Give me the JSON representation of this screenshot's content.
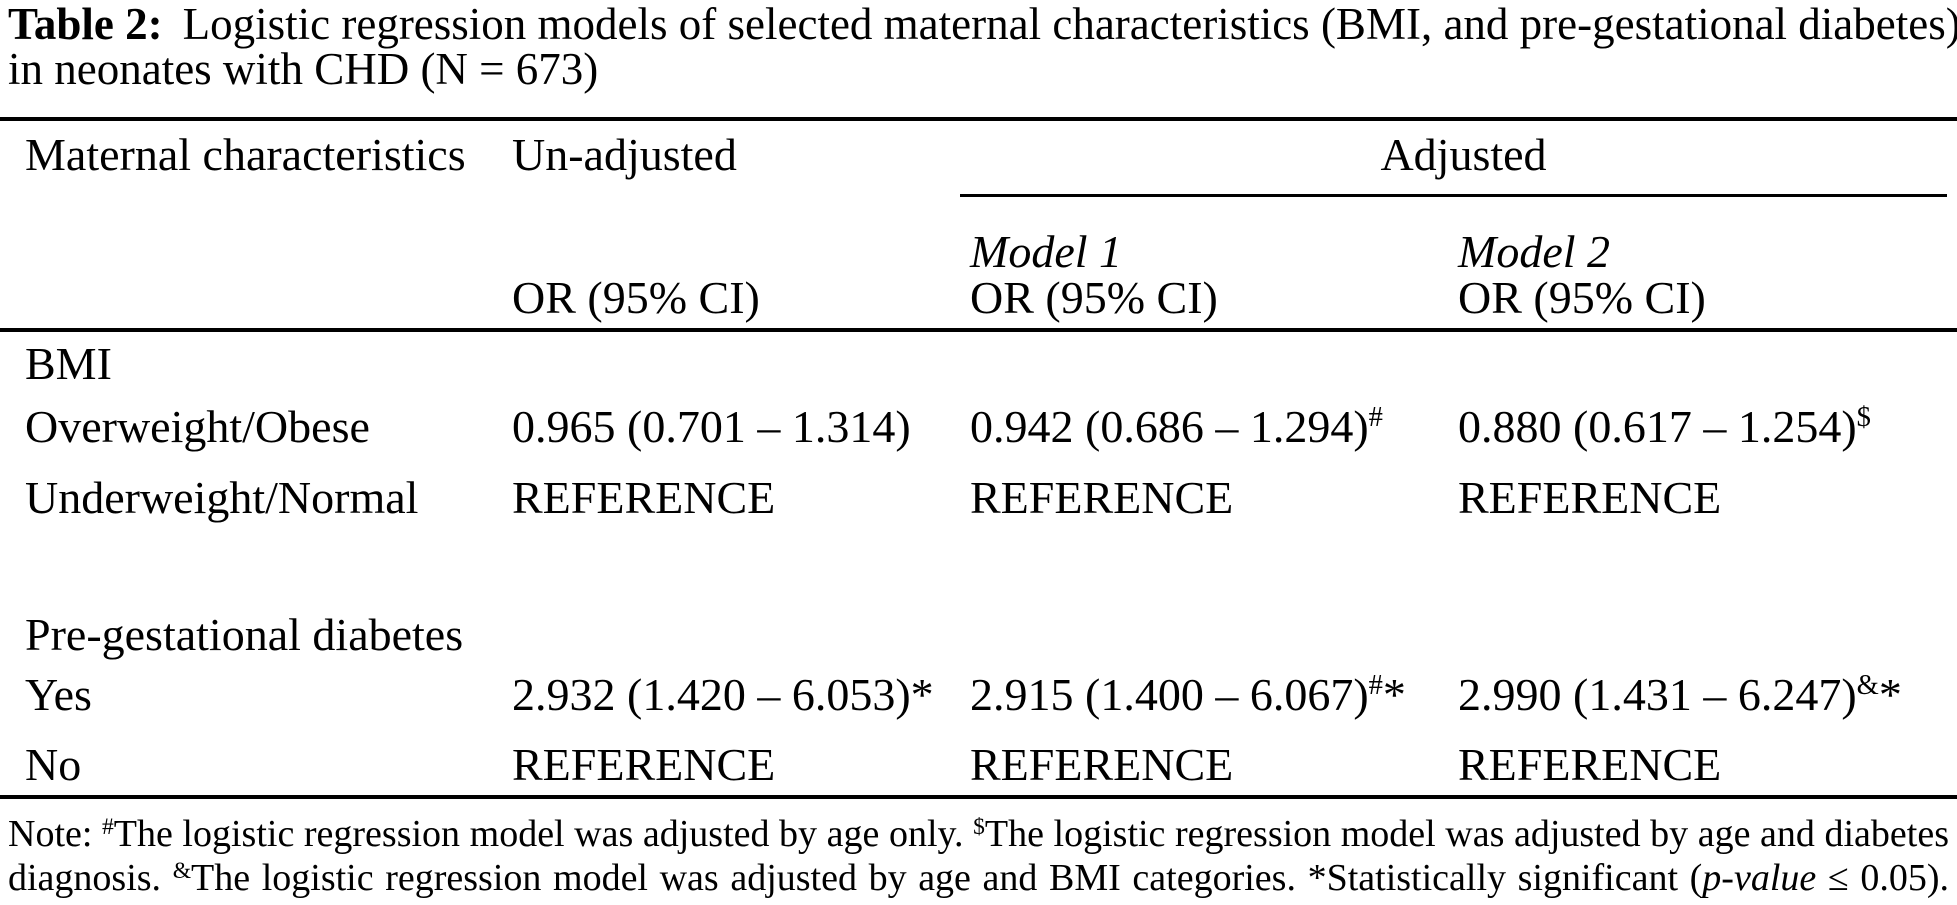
{
  "meta": {
    "background_color": "#ffffff",
    "text_color": "#000000",
    "rule_color": "#000000"
  },
  "caption": {
    "label": "Table 2:",
    "title_line1": "Logistic regression models of selected maternal characteristics (BMI, and pre-gestational diabetes)",
    "title_line2": "in neonates with CHD (N = 673)"
  },
  "header": {
    "maternal": "Maternal characteristics",
    "unadjusted": "Un-adjusted",
    "adjusted": "Adjusted",
    "model1": "Model 1",
    "model2": "Model 2",
    "or_ci_unadjusted": "OR (95% CI)",
    "or_ci_model1": "OR (95% CI)",
    "or_ci_model2": "OR (95% CI)"
  },
  "body": {
    "bmi_heading": "BMI",
    "overweight": {
      "label": "Overweight/Obese",
      "unadjusted": "0.965 (0.701 – 1.314)",
      "model1": "0.942 (0.686 – 1.294)",
      "model1_sup": "#",
      "model2": "0.880 (0.617 – 1.254)",
      "model2_sup": "$"
    },
    "underweight": {
      "label": "Underweight/Normal",
      "unadjusted": "REFERENCE",
      "model1": "REFERENCE",
      "model2": "REFERENCE"
    },
    "diabetes_heading": "Pre-gestational diabetes",
    "yes": {
      "label": "Yes",
      "unadjusted": "2.932 (1.420 – 6.053)*",
      "model1": "2.915 (1.400 – 6.067)",
      "model1_sup": "#",
      "model1_star": "*",
      "model2": "2.990 (1.431 – 6.247)",
      "model2_sup": "&",
      "model2_star": "*"
    },
    "no": {
      "label": "No",
      "unadjusted": "REFERENCE",
      "model1": "REFERENCE",
      "model2": "REFERENCE"
    }
  },
  "note": {
    "line1": {
      "s0": "Note: ",
      "sup1": "#",
      "s1": "The logistic regression model was adjusted by age only. ",
      "sup2": "$",
      "s2": "The logistic regression model was adjusted by age and diabetes"
    },
    "line2": {
      "s0": "diagnosis. ",
      "sup1": "&",
      "s1": "The logistic regression model was adjusted by age and BMI categories. *Statistically significant (",
      "italic1": "p-value",
      "s2": " ≤ 0.05)."
    }
  }
}
